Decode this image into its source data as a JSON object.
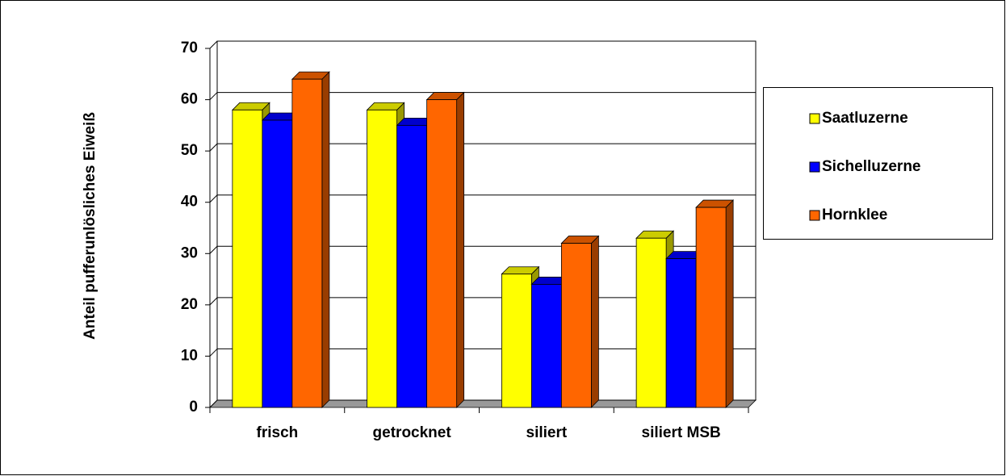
{
  "chart_data": {
    "type": "bar3d",
    "y_label": "Anteil pufferunlösliches Eiweiß",
    "categories": [
      "frisch",
      "getrocknet",
      "siliert",
      "siliert MSB"
    ],
    "series": [
      {
        "name": "Saatluzerne",
        "color": "#ffff00",
        "values": [
          58,
          58,
          26,
          33
        ]
      },
      {
        "name": "Sichelluzerne",
        "color": "#0000ff",
        "values": [
          56,
          55,
          24,
          29
        ]
      },
      {
        "name": "Hornklee",
        "color": "#ff6600",
        "values": [
          64,
          60,
          32,
          39
        ]
      }
    ],
    "ylim": [
      0,
      70
    ],
    "yticks": [
      0,
      10,
      20,
      30,
      40,
      50,
      60,
      70
    ],
    "grid": true,
    "legend": "right"
  }
}
